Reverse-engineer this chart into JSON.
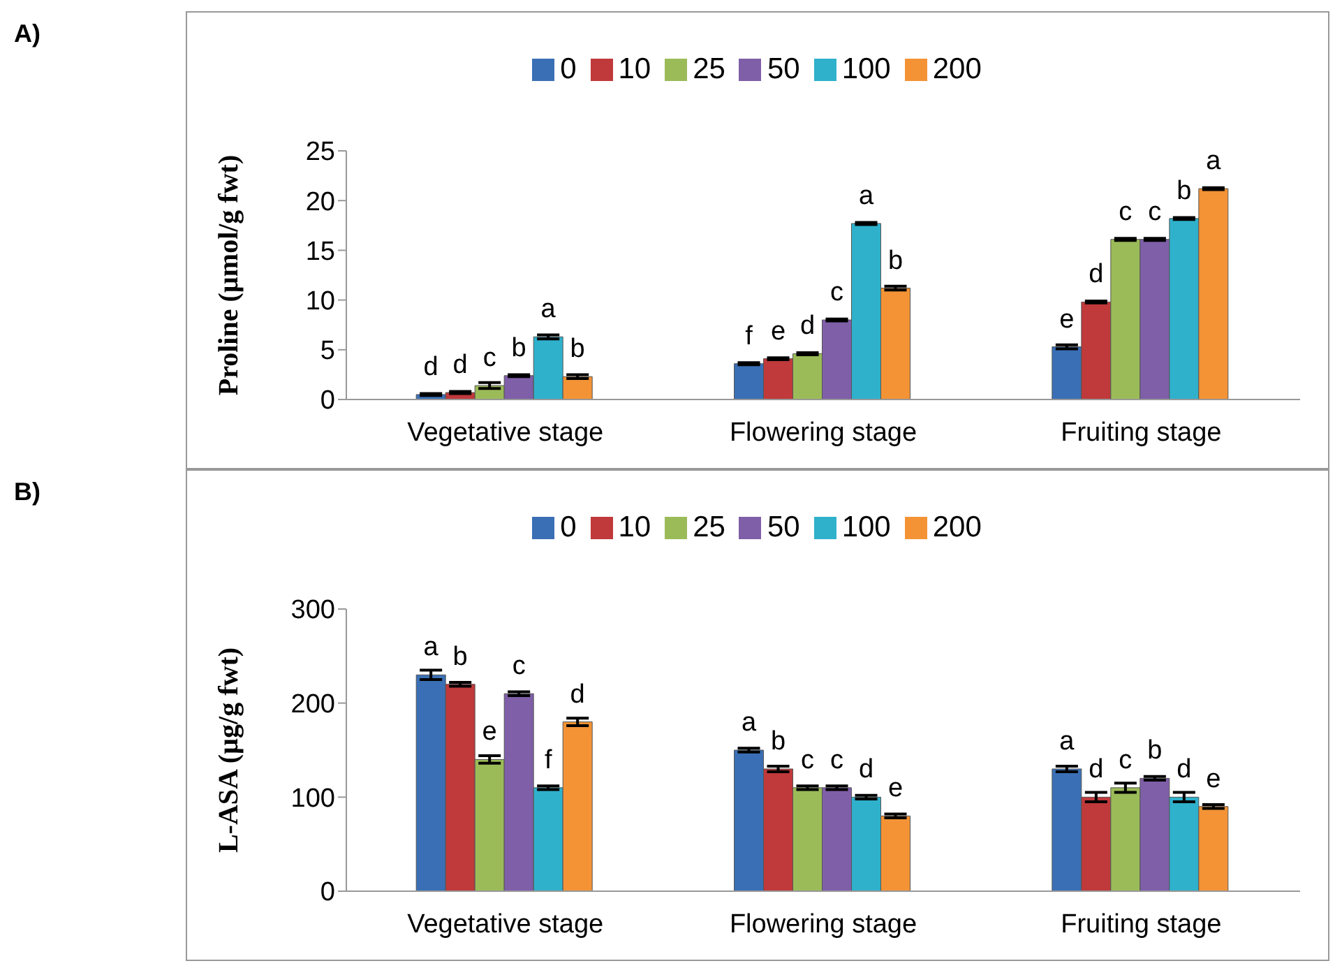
{
  "chart_data": [
    {
      "type": "bar",
      "annotations": [
        "A)"
      ],
      "ylabel": "Proline (µmol/g fwt)",
      "categories": [
        "Vegetative stage",
        "Flowering stage",
        "Fruiting stage"
      ],
      "ylim": [
        0,
        25
      ],
      "yticks": [
        0,
        5,
        10,
        15,
        20,
        25
      ],
      "legend": "top",
      "grid": false,
      "series": [
        {
          "name": "0",
          "color": "#3a6fb5",
          "values": [
            0.5,
            3.6,
            5.3
          ],
          "errors": [
            0.1,
            0.1,
            0.2
          ],
          "value_labels": [
            "d",
            "f",
            "e"
          ]
        },
        {
          "name": "10",
          "color": "#c0393b",
          "values": [
            0.7,
            4.1,
            9.8
          ],
          "errors": [
            0.1,
            0.1,
            0.1
          ],
          "value_labels": [
            "d",
            "e",
            "d"
          ]
        },
        {
          "name": "25",
          "color": "#9bbb59",
          "values": [
            1.4,
            4.6,
            16.1
          ],
          "errors": [
            0.3,
            0.1,
            0.1
          ],
          "value_labels": [
            "c",
            "d",
            "c"
          ]
        },
        {
          "name": "50",
          "color": "#7f5fa8",
          "values": [
            2.4,
            8.0,
            16.1
          ],
          "errors": [
            0.1,
            0.1,
            0.1
          ],
          "value_labels": [
            "b",
            "c",
            "c"
          ]
        },
        {
          "name": "100",
          "color": "#2fb1cc",
          "values": [
            6.3,
            17.7,
            18.2
          ],
          "errors": [
            0.2,
            0.1,
            0.1
          ],
          "value_labels": [
            "a",
            "a",
            "b"
          ]
        },
        {
          "name": "200",
          "color": "#f39336",
          "values": [
            2.3,
            11.2,
            21.2
          ],
          "errors": [
            0.2,
            0.2,
            0.1
          ],
          "value_labels": [
            "b",
            "b",
            "a"
          ]
        }
      ]
    },
    {
      "type": "bar",
      "annotations": [
        "B)"
      ],
      "ylabel": "L-ASA (µg/g fwt)",
      "categories": [
        "Vegetative stage",
        "Flowering stage",
        "Fruiting stage"
      ],
      "ylim": [
        0,
        300
      ],
      "yticks": [
        0,
        100,
        200,
        300
      ],
      "legend": "top",
      "grid": false,
      "series": [
        {
          "name": "0",
          "color": "#3a6fb5",
          "values": [
            230,
            150,
            130
          ],
          "errors": [
            5,
            2,
            3
          ],
          "value_labels": [
            "a",
            "a",
            "a"
          ]
        },
        {
          "name": "10",
          "color": "#c0393b",
          "values": [
            220,
            130,
            100
          ],
          "errors": [
            2,
            3,
            5
          ],
          "value_labels": [
            "b",
            "b",
            "d"
          ]
        },
        {
          "name": "25",
          "color": "#9bbb59",
          "values": [
            140,
            110,
            110
          ],
          "errors": [
            4,
            2,
            5
          ],
          "value_labels": [
            "e",
            "c",
            "c"
          ]
        },
        {
          "name": "50",
          "color": "#7f5fa8",
          "values": [
            210,
            110,
            120
          ],
          "errors": [
            2,
            2,
            2
          ],
          "value_labels": [
            "c",
            "c",
            "b"
          ]
        },
        {
          "name": "100",
          "color": "#2fb1cc",
          "values": [
            110,
            100,
            100
          ],
          "errors": [
            2,
            2,
            5
          ],
          "value_labels": [
            "f",
            "d",
            "d"
          ]
        },
        {
          "name": "200",
          "color": "#f39336",
          "values": [
            180,
            80,
            90
          ],
          "errors": [
            4,
            2,
            2
          ],
          "value_labels": [
            "d",
            "e",
            "e"
          ]
        }
      ]
    }
  ]
}
